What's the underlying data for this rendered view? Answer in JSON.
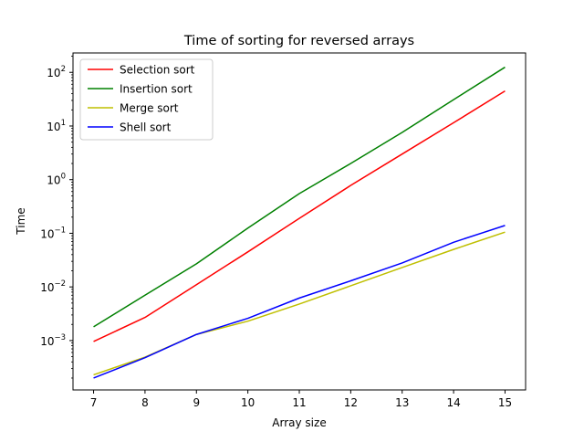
{
  "chart_data": {
    "type": "line",
    "title": "Time of sorting for reversed arrays",
    "xlabel": "Array size",
    "ylabel": "Time",
    "yscale": "log",
    "xlim": [
      6.6,
      15.4
    ],
    "ylim": [
      0.00012,
      230
    ],
    "x_ticks": [
      "7",
      "8",
      "9",
      "10",
      "11",
      "12",
      "13",
      "14",
      "15"
    ],
    "y_ticks": [
      {
        "base": "10",
        "exp": "−3",
        "value": 0.001
      },
      {
        "base": "10",
        "exp": "−2",
        "value": 0.01
      },
      {
        "base": "10",
        "exp": "−1",
        "value": 0.1
      },
      {
        "base": "10",
        "exp": "0",
        "value": 1
      },
      {
        "base": "10",
        "exp": "1",
        "value": 10
      },
      {
        "base": "10",
        "exp": "2",
        "value": 100
      }
    ],
    "grid": false,
    "legend_position": "upper-left",
    "x": [
      7,
      8,
      9,
      10,
      11,
      12,
      13,
      14,
      15
    ],
    "series": [
      {
        "name": "Selection sort",
        "color": "#ff0000",
        "values": [
          0.00096,
          0.0027,
          0.011,
          0.045,
          0.19,
          0.78,
          3.0,
          11.5,
          45
        ]
      },
      {
        "name": "Insertion sort",
        "color": "#008000",
        "values": [
          0.0018,
          0.007,
          0.027,
          0.125,
          0.55,
          2.0,
          7.6,
          31,
          125
        ]
      },
      {
        "name": "Merge sort",
        "color": "#bfbf00",
        "values": [
          0.00023,
          0.00049,
          0.0013,
          0.0023,
          0.0048,
          0.0105,
          0.023,
          0.05,
          0.105
        ]
      },
      {
        "name": "Shell sort",
        "color": "#0000ff",
        "values": [
          0.0002,
          0.00048,
          0.0013,
          0.0026,
          0.0062,
          0.013,
          0.028,
          0.068,
          0.14
        ]
      }
    ]
  }
}
